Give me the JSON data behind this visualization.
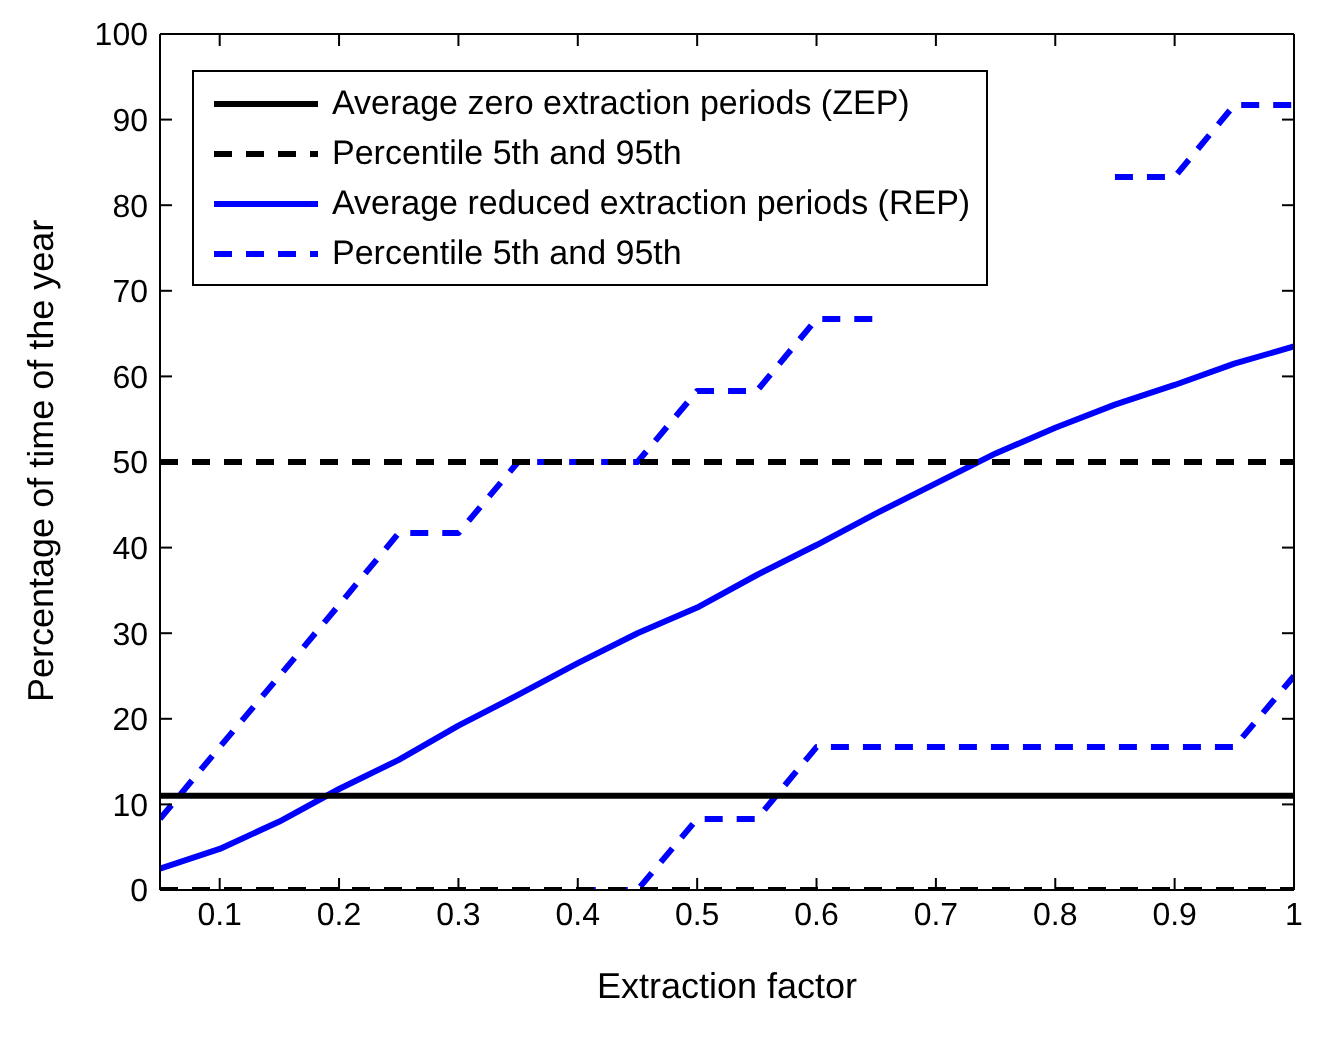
{
  "chart_data": {
    "type": "line",
    "xlabel": "Extraction factor",
    "ylabel": "Percentage of time of the year",
    "x": [
      0.05,
      0.1,
      0.15,
      0.2,
      0.25,
      0.3,
      0.35,
      0.4,
      0.45,
      0.5,
      0.55,
      0.6,
      0.65,
      0.7,
      0.75,
      0.8,
      0.85,
      0.9,
      0.95,
      1
    ],
    "series": [
      {
        "name": "Average zero extraction periods (ZEP)",
        "color": "#000000",
        "line_style": "solid",
        "values": [
          11,
          11,
          11,
          11,
          11,
          11,
          11,
          11,
          11,
          11,
          11,
          11,
          11,
          11,
          11,
          11,
          11,
          11,
          11,
          11
        ]
      },
      {
        "name": "Percentile 5th and 95th",
        "color": "#000000",
        "line_style": "dashed",
        "values": [
          50,
          50,
          50,
          50,
          50,
          50,
          50,
          50,
          50,
          50,
          50,
          50,
          50,
          50,
          50,
          50,
          50,
          50,
          50,
          50
        ]
      },
      {
        "color": "#000000",
        "line_style": "dashed",
        "values": [
          0,
          0,
          0,
          0,
          0,
          0,
          0,
          0,
          0,
          0,
          0,
          0,
          0,
          0,
          0,
          0,
          0,
          0,
          0,
          0
        ]
      },
      {
        "name": "Average reduced extraction periods (REP)",
        "color": "#0000ff",
        "line_style": "solid",
        "values": [
          2.5,
          4.8,
          8,
          11.8,
          15.2,
          19.2,
          22.8,
          26.5,
          30,
          33,
          36.8,
          40.3,
          44,
          47.5,
          51,
          54,
          56.7,
          59,
          61.5,
          63.5
        ]
      },
      {
        "name": "Percentile 5th and 95th",
        "color": "#0000ff",
        "line_style": "dashed",
        "values": [
          8.3,
          16.7,
          25,
          33.3,
          41.7,
          41.7,
          50,
          50,
          50,
          58.3,
          58.3,
          66.7,
          66.7,
          null,
          null,
          null,
          83.3,
          83.3,
          91.7,
          91.7
        ]
      },
      {
        "color": "#0000ff",
        "line_style": "dashed",
        "values": [
          null,
          null,
          null,
          null,
          null,
          null,
          null,
          0,
          0,
          8.3,
          8.3,
          16.7,
          16.7,
          16.7,
          16.7,
          16.7,
          16.7,
          16.7,
          16.7,
          25
        ]
      }
    ],
    "xlim": [
      0.05,
      1
    ],
    "xticks": [
      0.1,
      0.2,
      0.3,
      0.4,
      0.5,
      0.6,
      0.7,
      0.8,
      0.9,
      1
    ],
    "ylim": [
      0,
      100
    ],
    "yticks": [
      0,
      10,
      20,
      30,
      40,
      50,
      60,
      70,
      80,
      90,
      100
    ],
    "grid": false,
    "legend": "top left",
    "marker": "none"
  }
}
